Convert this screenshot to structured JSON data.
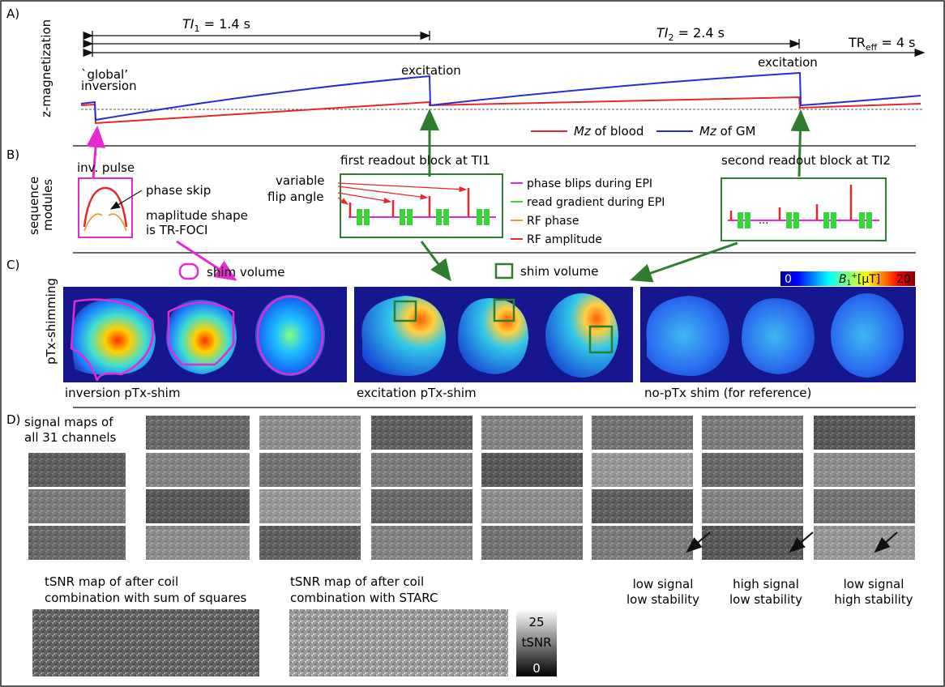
{
  "sections": {
    "A": "A)",
    "B": "B)",
    "C": "C)",
    "D": "D)"
  },
  "panel_a": {
    "ylabel": "z-magnetization",
    "ti1": "TI",
    "ti1_sub": "1",
    "ti1_val": " = 1.4 s",
    "ti2": "TI",
    "ti2_sub": "2",
    "ti2_val": " = 2.4 s",
    "tr": "TR",
    "tr_sub": "eff",
    "tr_val": " = 4 s",
    "global_1": "`global’",
    "global_2": "inversion",
    "excitation_1": "excitation",
    "excitation_2": "excitation",
    "legend_blood_mz": "Mz",
    "legend_blood_rest": " of blood",
    "legend_gm_mz": "Mz",
    "legend_gm_rest": " of GM",
    "colors": {
      "blood": "#e8262c",
      "gm": "#2b2bd6",
      "arrow_pink": "#e62ad1",
      "arrow_green": "#2f7d2f"
    }
  },
  "panel_b": {
    "ylabel_1": "sequence",
    "ylabel_2": "modules",
    "inv_pulse": "inv. pulse",
    "phase_skip": "phase skip",
    "maplitude_1": "maplitude shape",
    "maplitude_2": "is TR-FOCI",
    "first_block": "first readout block at TI1",
    "second_block": "second readout block at TI2",
    "variable": "variable",
    "flip_angle": "flip angle",
    "legend": [
      "phase blips during EPI",
      "read gradient during EPI",
      "RF phase",
      "RF amplitude"
    ],
    "legend_colors": [
      "#e62ad1",
      "#35d635",
      "#f09a3e",
      "#e8262c"
    ]
  },
  "panel_c": {
    "ylabel": "pTx-shimming",
    "shim_volume_1": "shim volume",
    "shim_volume_2": "shim volume",
    "colorbar_min": "0",
    "colorbar_label_b": "B",
    "colorbar_label_sub": "1",
    "colorbar_label_sup": "+",
    "colorbar_label_unit": "[µT]",
    "colorbar_max": "20",
    "caption_1": "inversion pTx-shim",
    "caption_2": "excitation pTx-shim",
    "caption_3": "no-pTx shim (for reference)"
  },
  "panel_d": {
    "signal_1": "signal maps of",
    "signal_2": "all 31 channels",
    "low_signal_1": "low signal",
    "low_stability": "low stability",
    "high_signal": "high signal",
    "low_stability_2": "low stability",
    "low_signal_2": "low signal",
    "high_stability": "high stability",
    "tsnr_sos_1": "tSNR map of after coil",
    "tsnr_sos_2": "combination with sum of squares",
    "tsnr_starc_1": "tSNR map of after coil",
    "tsnr_starc_2": "combination with STARC",
    "cb_max": "25",
    "cb_label": "tSNR",
    "cb_min": "0"
  }
}
